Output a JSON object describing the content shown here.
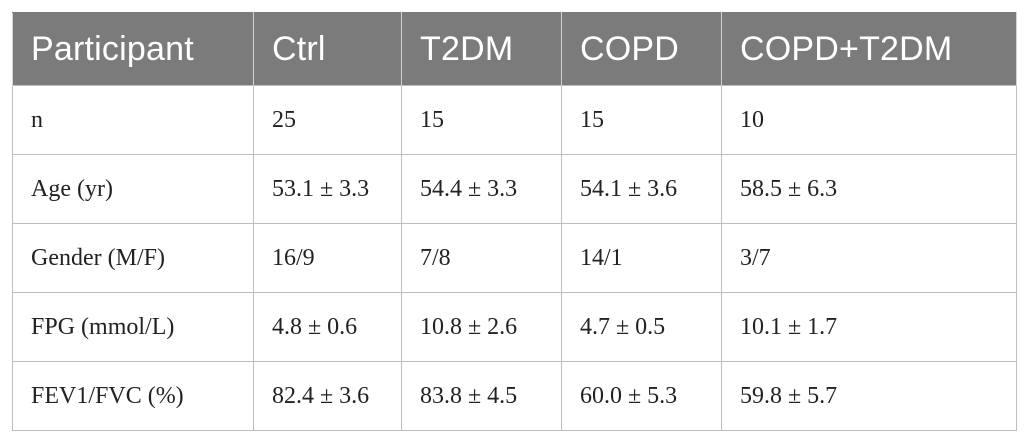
{
  "table": {
    "headers": [
      "Participant",
      "Ctrl",
      "T2DM",
      "COPD",
      "COPD+T2DM"
    ],
    "rows": [
      [
        "n",
        "25",
        "15",
        "15",
        "10"
      ],
      [
        "Age (yr)",
        "53.1 ± 3.3",
        "54.4 ± 3.3",
        "54.1 ± 3.6",
        "58.5 ± 6.3"
      ],
      [
        "Gender (M/F)",
        "16/9",
        "7/8",
        "14/1",
        "3/7"
      ],
      [
        "FPG (mmol/L)",
        "4.8 ± 0.6",
        "10.8 ± 2.6",
        "4.7 ± 0.5",
        "10.1 ± 1.7"
      ],
      [
        "FEV1/FVC (%)",
        "82.4 ± 3.6",
        "83.8 ± 4.5",
        "60.0 ± 5.3",
        "59.8 ± 5.7"
      ]
    ]
  },
  "colors": {
    "header_background": "#7b7b7b",
    "header_text": "#ffffff",
    "border": "#bdbdbd"
  }
}
